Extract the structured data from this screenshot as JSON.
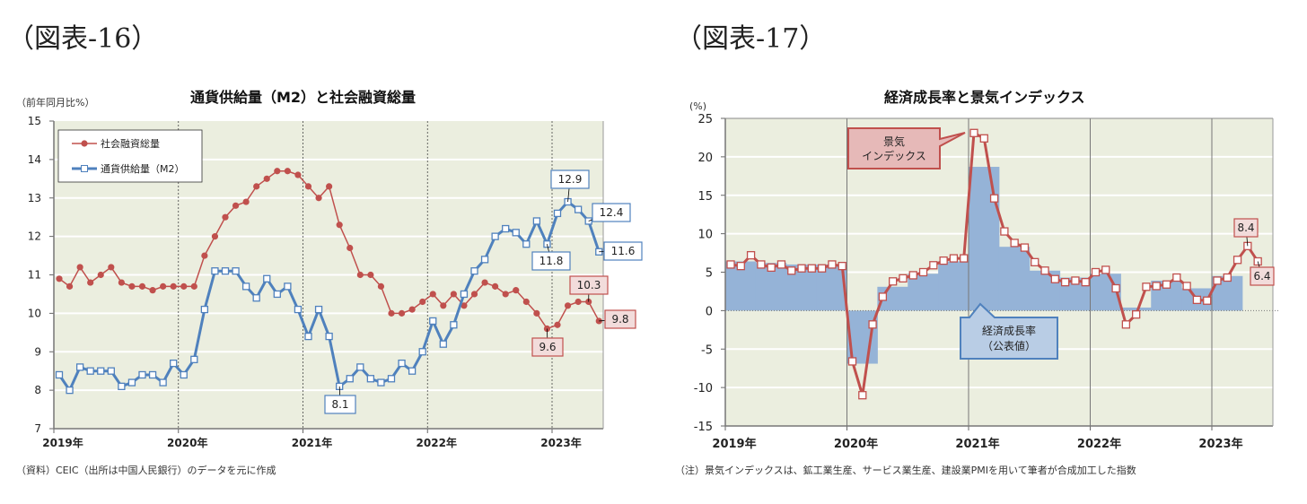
{
  "left": {
    "figure_label": "（図表-16）",
    "title": "通貨供給量（M2）と社会融資総量",
    "unit": "（前年同月比%）",
    "note": "（資料）CEIC（出所は中国人民銀行）のデータを元に作成",
    "legend": [
      "社会融資総量",
      "通貨供給量（M2）"
    ],
    "colors": {
      "tsf": "#C0504D",
      "m2": "#4F81BD",
      "plot_bg": "#EBEEDF"
    }
  },
  "right": {
    "figure_label": "（図表-17）",
    "title": "経済成長率と景気インデックス",
    "unit": "(%)",
    "note": "（注）景気インデックスは、鉱工業生産、サービス業生産、建設業PMIを用いて筆者が合成加工した指数",
    "callout_index": [
      "景気",
      "インデックス"
    ],
    "callout_gdp": [
      "経済成長率",
      "（公表値）"
    ],
    "colors": {
      "index": "#C0504D",
      "gdp": "#95B3D7",
      "plot_bg": "#EBEEDF"
    }
  },
  "chart_data": [
    {
      "type": "line",
      "title": "通貨供給量（M2）と社会融資総量",
      "ylabel": "（前年同月比%）",
      "xlabel": "",
      "ylim": [
        7,
        15
      ],
      "yticks": [
        7,
        8,
        9,
        10,
        11,
        12,
        13,
        14,
        15
      ],
      "xticks": [
        "2019年",
        "2020年",
        "2021年",
        "2022年",
        "2023年"
      ],
      "x_start": "2019-01",
      "x_end": "2023-05",
      "grid": true,
      "legend_position": "upper-left",
      "series": [
        {
          "name": "社会融資総量",
          "marker": "circle",
          "values": [
            10.9,
            10.7,
            11.2,
            10.8,
            11.0,
            11.2,
            10.8,
            10.7,
            10.7,
            10.6,
            10.7,
            10.7,
            10.7,
            10.7,
            11.5,
            12.0,
            12.5,
            12.8,
            12.9,
            13.3,
            13.5,
            13.7,
            13.7,
            13.6,
            13.3,
            13.0,
            13.3,
            12.3,
            11.7,
            11.0,
            11.0,
            10.7,
            10.0,
            10.0,
            10.1,
            10.3,
            10.5,
            10.2,
            10.5,
            10.2,
            10.5,
            10.8,
            10.7,
            10.5,
            10.6,
            10.3,
            10.0,
            9.6,
            9.7,
            10.2,
            10.3,
            10.3,
            9.8
          ]
        },
        {
          "name": "通貨供給量（M2）",
          "marker": "square",
          "values": [
            8.4,
            8.0,
            8.6,
            8.5,
            8.5,
            8.5,
            8.1,
            8.2,
            8.4,
            8.4,
            8.2,
            8.7,
            8.4,
            8.8,
            10.1,
            11.1,
            11.1,
            11.1,
            10.7,
            10.4,
            10.9,
            10.5,
            10.7,
            10.1,
            9.4,
            10.1,
            9.4,
            8.1,
            8.3,
            8.6,
            8.3,
            8.2,
            8.3,
            8.7,
            8.5,
            9.0,
            9.8,
            9.2,
            9.7,
            10.5,
            11.1,
            11.4,
            12.0,
            12.2,
            12.1,
            11.8,
            12.4,
            11.8,
            12.6,
            12.9,
            12.7,
            12.4,
            11.6
          ]
        }
      ],
      "annotations": [
        {
          "series": "通貨供給量（M2）",
          "label": "8.1"
        },
        {
          "series": "通貨供給量（M2）",
          "label": "11.8"
        },
        {
          "series": "通貨供給量（M2）",
          "label": "12.9"
        },
        {
          "series": "通貨供給量（M2）",
          "label": "12.4"
        },
        {
          "series": "通貨供給量（M2）",
          "label": "11.6"
        },
        {
          "series": "社会融資総量",
          "label": "9.6"
        },
        {
          "series": "社会融資総量",
          "label": "10.3"
        },
        {
          "series": "社会融資総量",
          "label": "9.8"
        }
      ]
    },
    {
      "type": "bar+line",
      "title": "経済成長率と景気インデックス",
      "ylabel": "(%)",
      "xlabel": "",
      "ylim": [
        -15,
        25
      ],
      "yticks": [
        -15,
        -10,
        -5,
        0,
        5,
        10,
        15,
        20,
        25
      ],
      "xticks": [
        "2019年",
        "2020年",
        "2021年",
        "2022年",
        "2023年"
      ],
      "grid": true,
      "series": [
        {
          "name": "経済成長率（公表値）",
          "type": "bar",
          "frequency": "quarterly",
          "categories": [
            "2019Q1",
            "2019Q2",
            "2019Q3",
            "2019Q4",
            "2020Q1",
            "2020Q2",
            "2020Q3",
            "2020Q4",
            "2021Q1",
            "2021Q2",
            "2021Q3",
            "2021Q4",
            "2022Q1",
            "2022Q2",
            "2022Q3",
            "2022Q4",
            "2023Q1"
          ],
          "values": [
            6.4,
            6.2,
            6.0,
            6.0,
            -6.9,
            3.1,
            4.8,
            6.4,
            18.7,
            8.3,
            5.2,
            4.3,
            4.8,
            0.4,
            3.9,
            2.9,
            4.5
          ]
        },
        {
          "name": "景気インデックス",
          "type": "line",
          "frequency": "monthly",
          "x_start": "2019-01",
          "values": [
            6.0,
            5.8,
            7.2,
            6.0,
            5.6,
            6.0,
            5.2,
            5.5,
            5.5,
            5.5,
            6.0,
            5.8,
            -6.6,
            -11.0,
            -1.8,
            1.8,
            3.8,
            4.2,
            4.6,
            5.0,
            5.9,
            6.5,
            6.8,
            6.8,
            23.1,
            22.4,
            14.6,
            10.3,
            8.8,
            8.2,
            6.3,
            5.2,
            4.1,
            3.7,
            3.9,
            3.7,
            5.0,
            5.3,
            2.9,
            -1.8,
            -0.5,
            3.1,
            3.2,
            3.4,
            4.3,
            3.2,
            1.4,
            1.3,
            3.9,
            4.3,
            6.6,
            8.4,
            6.4
          ]
        }
      ],
      "annotations": [
        {
          "series": "景気インデックス",
          "label": "8.4"
        },
        {
          "series": "景気インデックス",
          "label": "6.4"
        }
      ]
    }
  ]
}
